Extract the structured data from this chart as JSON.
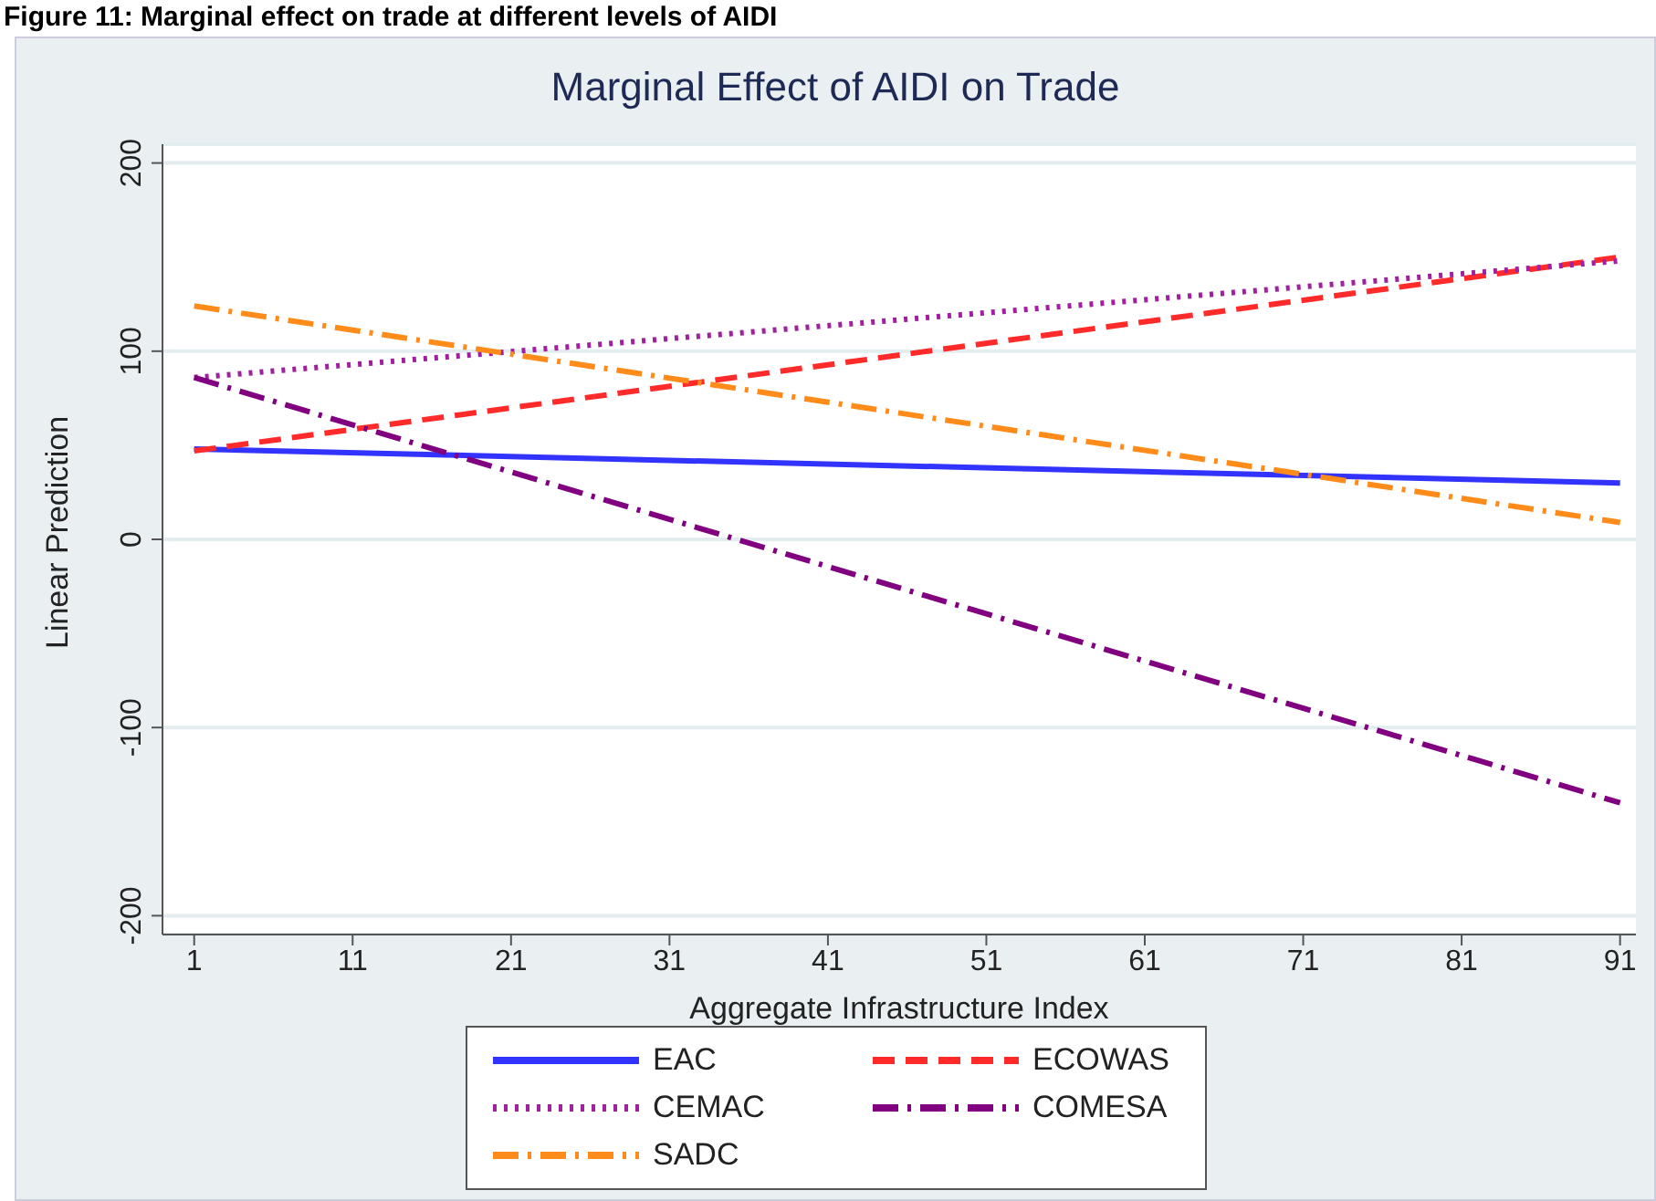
{
  "chart_data": {
    "type": "line",
    "title": "Marginal Effect of AIDI on Trade",
    "xlabel": "Aggregate Infrastructure Index",
    "ylabel": "Linear Prediction",
    "annotations": [
      "Figure 11: Marginal effect on trade at different levels of AIDI"
    ],
    "x": [
      1,
      91
    ],
    "series": [
      {
        "name": "EAC",
        "color": "#3333ff",
        "values": [
          48,
          30
        ],
        "line_style": "solid"
      },
      {
        "name": "ECOWAS",
        "color": "#ff2a2a",
        "values": [
          47,
          150
        ],
        "line_style": "dashed"
      },
      {
        "name": "CEMAC",
        "color": "#a020a0",
        "values": [
          86,
          148
        ],
        "line_style": "dotted"
      },
      {
        "name": "COMESA",
        "color": "#800080",
        "values": [
          86,
          -140
        ],
        "line_style": "dashdot"
      },
      {
        "name": "SADC",
        "color": "#ff8c1a",
        "values": [
          124,
          9
        ],
        "line_style": "dashdot"
      }
    ],
    "xlim": [
      -1,
      92
    ],
    "xticks": [
      1,
      11,
      21,
      31,
      41,
      51,
      61,
      71,
      81,
      91
    ],
    "ylim": [
      -210,
      210
    ],
    "yticks": [
      -200,
      -100,
      0,
      100,
      200
    ],
    "grid": "y",
    "legend": "bottom"
  }
}
